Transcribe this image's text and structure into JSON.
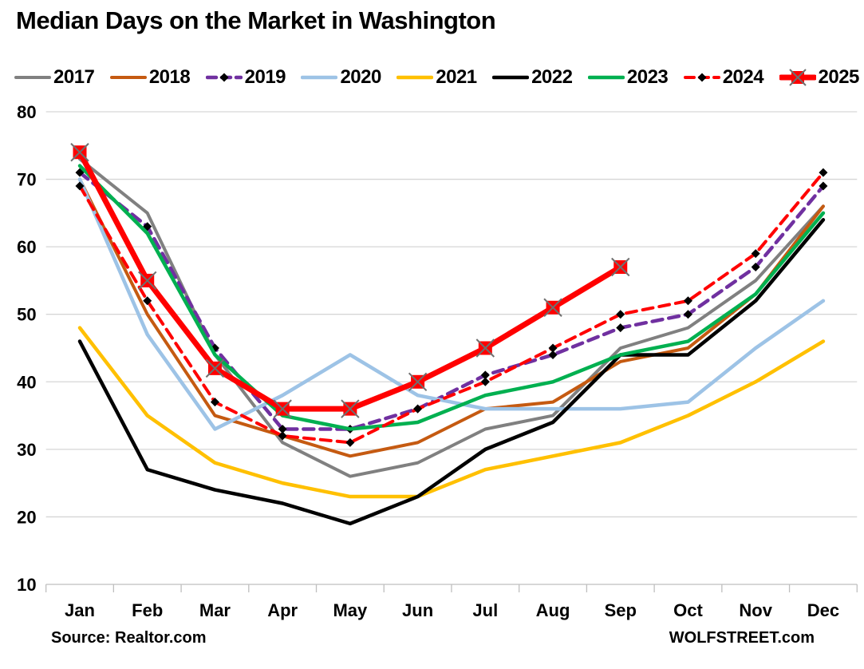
{
  "title": "Median Days on the Market in Washington",
  "footer": {
    "source": "Source: Realtor.com",
    "brand": "WOLFSTREET.com"
  },
  "chart_data": {
    "type": "line",
    "title": "Median Days on the Market in Washington",
    "xlabel": "",
    "ylabel": "",
    "categories": [
      "Jan",
      "Feb",
      "Mar",
      "Apr",
      "May",
      "Jun",
      "Jul",
      "Aug",
      "Sep",
      "Oct",
      "Nov",
      "Dec"
    ],
    "y_ticks": [
      80,
      70,
      60,
      50,
      40,
      30,
      20,
      10
    ],
    "ylim": [
      10,
      80
    ],
    "grid": true,
    "legend_position": "top",
    "colors": {
      "grid": "#d6d6d6",
      "axis": "#bfbfbf",
      "text": "#000000",
      "marker_x": "#6f6f6f",
      "diamond": "#000000"
    },
    "series": [
      {
        "name": "2017",
        "color": "#808080",
        "style": "solid",
        "width": 4,
        "marker": "none",
        "values": [
          73,
          65,
          44,
          31,
          26,
          28,
          33,
          35,
          45,
          48,
          55,
          66
        ]
      },
      {
        "name": "2018",
        "color": "#c55a11",
        "style": "solid",
        "width": 4,
        "marker": "none",
        "values": [
          70,
          50,
          35,
          32,
          29,
          31,
          36,
          37,
          43,
          45,
          53,
          66
        ]
      },
      {
        "name": "2019",
        "color": "#7030a0",
        "style": "dashed",
        "width": 4.5,
        "marker": "diamond",
        "values": [
          71,
          63,
          45,
          33,
          33,
          36,
          41,
          44,
          48,
          50,
          57,
          69
        ]
      },
      {
        "name": "2020",
        "color": "#9dc3e6",
        "style": "solid",
        "width": 4.5,
        "marker": "none",
        "values": [
          70,
          47,
          33,
          38,
          44,
          38,
          36,
          36,
          36,
          37,
          45,
          52
        ]
      },
      {
        "name": "2021",
        "color": "#ffc000",
        "style": "solid",
        "width": 4.5,
        "marker": "none",
        "values": [
          48,
          35,
          28,
          25,
          23,
          23,
          27,
          29,
          31,
          35,
          40,
          46
        ]
      },
      {
        "name": "2022",
        "color": "#000000",
        "style": "solid",
        "width": 4.5,
        "marker": "none",
        "values": [
          46,
          27,
          24,
          22,
          19,
          23,
          30,
          34,
          44,
          44,
          52,
          64
        ]
      },
      {
        "name": "2023",
        "color": "#00b050",
        "style": "solid",
        "width": 4.5,
        "marker": "none",
        "values": [
          72,
          62,
          44,
          35,
          33,
          34,
          38,
          40,
          44,
          46,
          53,
          65
        ]
      },
      {
        "name": "2024",
        "color": "#ff0000",
        "style": "dashed",
        "width": 4,
        "marker": "diamond",
        "values": [
          69,
          52,
          37,
          32,
          31,
          36,
          40,
          45,
          50,
          52,
          59,
          71
        ]
      },
      {
        "name": "2025",
        "color": "#ff0000",
        "style": "solid",
        "width": 7,
        "marker": "square-x",
        "values": [
          74,
          55,
          42,
          36,
          36,
          40,
          45,
          51,
          57
        ]
      }
    ]
  }
}
